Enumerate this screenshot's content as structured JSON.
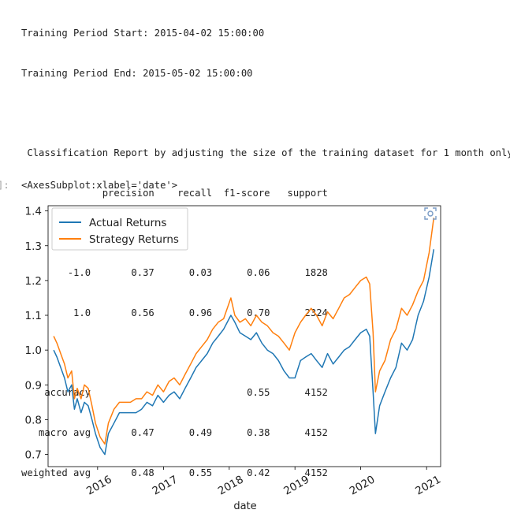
{
  "output": {
    "lines": [
      "Training Period Start: 2015-04-02 15:00:00",
      "Training Period End: 2015-05-02 15:00:00",
      "",
      " Classification Report by adjusting the size of the training dataset for 1 month only",
      "              precision    recall  f1-score   support",
      "",
      "        -1.0       0.37      0.03      0.06      1828",
      "         1.0       0.56      0.96      0.70      2324",
      "",
      "    accuracy                           0.55      4152",
      "   macro avg       0.47      0.49      0.38      4152",
      "weighted avg       0.48      0.55      0.42      4152"
    ]
  },
  "prompt_text": "]:",
  "result_repr": "<AxesSubplot:xlabel='date'>",
  "icons": {
    "zoom": "focus-zoom-icon"
  },
  "chart_data": {
    "type": "line",
    "xlabel": "date",
    "ylabel": "",
    "xlim": [
      "2015-04-01",
      "2021-03-20"
    ],
    "ylim": [
      0.665,
      1.415
    ],
    "y_ticks": [
      "0.7",
      "0.8",
      "0.9",
      "1.0",
      "1.1",
      "1.2",
      "1.3",
      "1.4"
    ],
    "x_ticks": [
      "2016",
      "2017",
      "2018",
      "2019",
      "2020",
      "2021"
    ],
    "legend_position": "upper-left",
    "grid": false,
    "series": [
      {
        "name": "Actual Returns",
        "color": "#1f77b4",
        "points": [
          [
            "2015-05-02",
            1.0
          ],
          [
            "2015-05-20",
            0.98
          ],
          [
            "2015-06-10",
            0.95
          ],
          [
            "2015-07-01",
            0.92
          ],
          [
            "2015-07-20",
            0.88
          ],
          [
            "2015-08-10",
            0.9
          ],
          [
            "2015-08-25",
            0.83
          ],
          [
            "2015-09-10",
            0.86
          ],
          [
            "2015-10-01",
            0.82
          ],
          [
            "2015-10-20",
            0.85
          ],
          [
            "2015-11-10",
            0.84
          ],
          [
            "2015-12-01",
            0.8
          ],
          [
            "2015-12-20",
            0.76
          ],
          [
            "2016-01-15",
            0.72
          ],
          [
            "2016-02-10",
            0.7
          ],
          [
            "2016-03-01",
            0.76
          ],
          [
            "2016-04-01",
            0.79
          ],
          [
            "2016-05-01",
            0.82
          ],
          [
            "2016-06-01",
            0.82
          ],
          [
            "2016-07-01",
            0.82
          ],
          [
            "2016-08-01",
            0.82
          ],
          [
            "2016-09-01",
            0.83
          ],
          [
            "2016-10-01",
            0.85
          ],
          [
            "2016-11-01",
            0.84
          ],
          [
            "2016-12-01",
            0.87
          ],
          [
            "2017-01-01",
            0.85
          ],
          [
            "2017-02-01",
            0.87
          ],
          [
            "2017-03-01",
            0.88
          ],
          [
            "2017-04-01",
            0.86
          ],
          [
            "2017-05-01",
            0.89
          ],
          [
            "2017-06-01",
            0.92
          ],
          [
            "2017-07-01",
            0.95
          ],
          [
            "2017-08-01",
            0.97
          ],
          [
            "2017-09-01",
            0.99
          ],
          [
            "2017-10-01",
            1.02
          ],
          [
            "2017-11-01",
            1.04
          ],
          [
            "2017-12-01",
            1.06
          ],
          [
            "2018-01-10",
            1.1
          ],
          [
            "2018-02-01",
            1.08
          ],
          [
            "2018-03-01",
            1.05
          ],
          [
            "2018-04-01",
            1.04
          ],
          [
            "2018-05-01",
            1.03
          ],
          [
            "2018-06-01",
            1.05
          ],
          [
            "2018-07-01",
            1.02
          ],
          [
            "2018-08-01",
            1.0
          ],
          [
            "2018-09-01",
            0.99
          ],
          [
            "2018-10-01",
            0.97
          ],
          [
            "2018-11-01",
            0.94
          ],
          [
            "2018-12-01",
            0.92
          ],
          [
            "2019-01-01",
            0.92
          ],
          [
            "2019-02-01",
            0.97
          ],
          [
            "2019-03-01",
            0.98
          ],
          [
            "2019-04-01",
            0.99
          ],
          [
            "2019-05-01",
            0.97
          ],
          [
            "2019-06-01",
            0.95
          ],
          [
            "2019-07-01",
            0.99
          ],
          [
            "2019-08-01",
            0.96
          ],
          [
            "2019-09-01",
            0.98
          ],
          [
            "2019-10-01",
            1.0
          ],
          [
            "2019-11-01",
            1.01
          ],
          [
            "2019-12-01",
            1.03
          ],
          [
            "2020-01-01",
            1.05
          ],
          [
            "2020-02-01",
            1.06
          ],
          [
            "2020-02-20",
            1.04
          ],
          [
            "2020-03-10",
            0.88
          ],
          [
            "2020-03-23",
            0.76
          ],
          [
            "2020-04-15",
            0.84
          ],
          [
            "2020-05-15",
            0.88
          ],
          [
            "2020-06-15",
            0.92
          ],
          [
            "2020-07-15",
            0.95
          ],
          [
            "2020-08-15",
            1.02
          ],
          [
            "2020-09-15",
            1.0
          ],
          [
            "2020-10-15",
            1.03
          ],
          [
            "2020-11-15",
            1.1
          ],
          [
            "2020-12-15",
            1.14
          ],
          [
            "2021-01-15",
            1.21
          ],
          [
            "2021-02-10",
            1.29
          ]
        ]
      },
      {
        "name": "Strategy Returns",
        "color": "#ff7f0e",
        "points": [
          [
            "2015-05-02",
            1.04
          ],
          [
            "2015-05-20",
            1.02
          ],
          [
            "2015-06-10",
            0.99
          ],
          [
            "2015-07-01",
            0.96
          ],
          [
            "2015-07-20",
            0.92
          ],
          [
            "2015-08-10",
            0.94
          ],
          [
            "2015-08-25",
            0.86
          ],
          [
            "2015-09-10",
            0.89
          ],
          [
            "2015-10-01",
            0.86
          ],
          [
            "2015-10-20",
            0.9
          ],
          [
            "2015-11-10",
            0.89
          ],
          [
            "2015-12-01",
            0.84
          ],
          [
            "2015-12-20",
            0.79
          ],
          [
            "2016-01-15",
            0.75
          ],
          [
            "2016-02-10",
            0.73
          ],
          [
            "2016-03-01",
            0.79
          ],
          [
            "2016-04-01",
            0.83
          ],
          [
            "2016-05-01",
            0.85
          ],
          [
            "2016-06-01",
            0.85
          ],
          [
            "2016-07-01",
            0.85
          ],
          [
            "2016-08-01",
            0.86
          ],
          [
            "2016-09-01",
            0.86
          ],
          [
            "2016-10-01",
            0.88
          ],
          [
            "2016-11-01",
            0.87
          ],
          [
            "2016-12-01",
            0.9
          ],
          [
            "2017-01-01",
            0.88
          ],
          [
            "2017-02-01",
            0.91
          ],
          [
            "2017-03-01",
            0.92
          ],
          [
            "2017-04-01",
            0.9
          ],
          [
            "2017-05-01",
            0.93
          ],
          [
            "2017-06-01",
            0.96
          ],
          [
            "2017-07-01",
            0.99
          ],
          [
            "2017-08-01",
            1.01
          ],
          [
            "2017-09-01",
            1.03
          ],
          [
            "2017-10-01",
            1.06
          ],
          [
            "2017-11-01",
            1.08
          ],
          [
            "2017-12-01",
            1.09
          ],
          [
            "2018-01-10",
            1.15
          ],
          [
            "2018-02-01",
            1.1
          ],
          [
            "2018-03-01",
            1.08
          ],
          [
            "2018-04-01",
            1.09
          ],
          [
            "2018-05-01",
            1.07
          ],
          [
            "2018-06-01",
            1.1
          ],
          [
            "2018-07-01",
            1.08
          ],
          [
            "2018-08-01",
            1.07
          ],
          [
            "2018-09-01",
            1.05
          ],
          [
            "2018-10-01",
            1.04
          ],
          [
            "2018-11-01",
            1.02
          ],
          [
            "2018-12-01",
            1.0
          ],
          [
            "2019-01-01",
            1.05
          ],
          [
            "2019-02-01",
            1.08
          ],
          [
            "2019-03-01",
            1.1
          ],
          [
            "2019-04-01",
            1.12
          ],
          [
            "2019-05-01",
            1.1
          ],
          [
            "2019-06-01",
            1.07
          ],
          [
            "2019-07-01",
            1.11
          ],
          [
            "2019-08-01",
            1.09
          ],
          [
            "2019-09-01",
            1.12
          ],
          [
            "2019-10-01",
            1.15
          ],
          [
            "2019-11-01",
            1.16
          ],
          [
            "2019-12-01",
            1.18
          ],
          [
            "2020-01-01",
            1.2
          ],
          [
            "2020-02-01",
            1.21
          ],
          [
            "2020-02-20",
            1.19
          ],
          [
            "2020-03-10",
            1.05
          ],
          [
            "2020-03-23",
            0.88
          ],
          [
            "2020-04-15",
            0.94
          ],
          [
            "2020-05-15",
            0.97
          ],
          [
            "2020-06-15",
            1.03
          ],
          [
            "2020-07-15",
            1.06
          ],
          [
            "2020-08-15",
            1.12
          ],
          [
            "2020-09-15",
            1.1
          ],
          [
            "2020-10-15",
            1.13
          ],
          [
            "2020-11-15",
            1.17
          ],
          [
            "2020-12-15",
            1.2
          ],
          [
            "2021-01-15",
            1.28
          ],
          [
            "2021-02-10",
            1.38
          ]
        ]
      }
    ]
  }
}
